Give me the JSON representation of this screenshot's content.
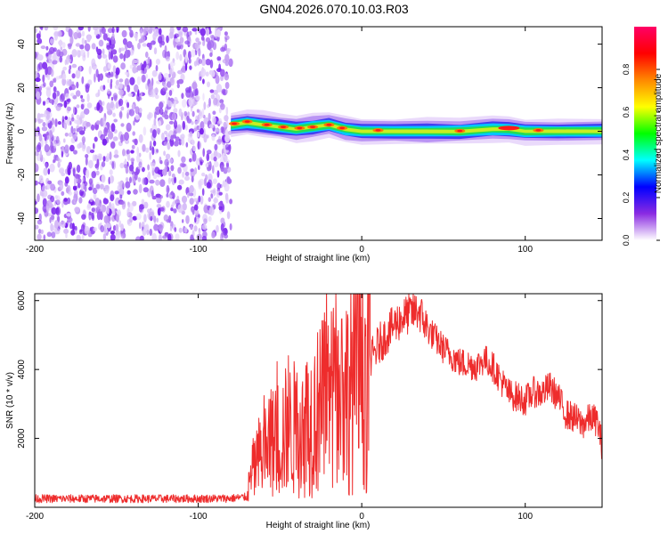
{
  "title": "GN04.2026.070.10.03.R03",
  "chart_data": [
    {
      "type": "heatmap",
      "name": "spectrogram",
      "xlabel": "Height of straight line (km)",
      "ylabel": "Frequency (Hz)",
      "xlim": [
        -200,
        147
      ],
      "ylim": [
        -50,
        48
      ],
      "xticks": [
        "-200",
        "-100",
        "0",
        "100"
      ],
      "xtick_values": [
        -200,
        -100,
        0,
        100
      ],
      "yticks": [
        "-40",
        "-20",
        "0",
        "20",
        "40"
      ],
      "ytick_values": [
        -40,
        -20,
        0,
        20,
        40
      ],
      "noise_region_km": [
        -200,
        -80
      ],
      "signal_region_km": [
        -80,
        147
      ],
      "signal_center_hz": [
        {
          "x": -80,
          "y": 3
        },
        {
          "x": -70,
          "y": 4
        },
        {
          "x": -60,
          "y": 3
        },
        {
          "x": -50,
          "y": 2
        },
        {
          "x": -40,
          "y": 1
        },
        {
          "x": -30,
          "y": 2
        },
        {
          "x": -20,
          "y": 3
        },
        {
          "x": -10,
          "y": 1
        },
        {
          "x": 0,
          "y": 0
        },
        {
          "x": 20,
          "y": 0
        },
        {
          "x": 40,
          "y": 0
        },
        {
          "x": 60,
          "y": 0
        },
        {
          "x": 80,
          "y": 1
        },
        {
          "x": 90,
          "y": 1
        },
        {
          "x": 100,
          "y": 0
        },
        {
          "x": 120,
          "y": 0
        },
        {
          "x": 147,
          "y": 0
        }
      ],
      "colorbar": {
        "label": "Normalized spectral amplitude",
        "range": [
          0,
          1
        ],
        "ticks": [
          "0.0",
          "0.2",
          "0.4",
          "0.6",
          "0.8"
        ],
        "tick_values": [
          0,
          0.2,
          0.4,
          0.6,
          0.8
        ],
        "colors": [
          "#ffffff",
          "#8a2be2",
          "#0000ff",
          "#00ffff",
          "#00ff00",
          "#ffff00",
          "#ff8800",
          "#ff0000",
          "#ff0066"
        ]
      }
    },
    {
      "type": "line",
      "name": "snr",
      "xlabel": "Height of straight line (km)",
      "ylabel": "SNR (10 * v/v)",
      "xlim": [
        -200,
        147
      ],
      "ylim": [
        0,
        6200
      ],
      "xticks": [
        "-200",
        "-100",
        "0",
        "100"
      ],
      "xtick_values": [
        -200,
        -100,
        0,
        100
      ],
      "yticks": [
        "2000",
        "4000",
        "6000"
      ],
      "ytick_values": [
        2000,
        4000,
        6000
      ],
      "color": "#ee2c2c",
      "series": [
        {
          "name": "SNR",
          "points": [
            {
              "x": -200,
              "y": 250
            },
            {
              "x": -180,
              "y": 250
            },
            {
              "x": -160,
              "y": 250
            },
            {
              "x": -140,
              "y": 250
            },
            {
              "x": -120,
              "y": 250
            },
            {
              "x": -100,
              "y": 250
            },
            {
              "x": -80,
              "y": 260
            },
            {
              "x": -70,
              "y": 300
            },
            {
              "x": -67,
              "y": 1000
            },
            {
              "x": -62,
              "y": 1500
            },
            {
              "x": -55,
              "y": 1800
            },
            {
              "x": -50,
              "y": 2100
            },
            {
              "x": -45,
              "y": 2200
            },
            {
              "x": -40,
              "y": 2300
            },
            {
              "x": -35,
              "y": 2400
            },
            {
              "x": -30,
              "y": 2600
            },
            {
              "x": -25,
              "y": 2900
            },
            {
              "x": -20,
              "y": 3100
            },
            {
              "x": -15,
              "y": 3200
            },
            {
              "x": -10,
              "y": 3400
            },
            {
              "x": -5,
              "y": 3600
            },
            {
              "x": 0,
              "y": 3900
            },
            {
              "x": 5,
              "y": 4200
            },
            {
              "x": 10,
              "y": 4700
            },
            {
              "x": 15,
              "y": 5000
            },
            {
              "x": 20,
              "y": 5300
            },
            {
              "x": 25,
              "y": 5500
            },
            {
              "x": 30,
              "y": 5650
            },
            {
              "x": 35,
              "y": 5700
            },
            {
              "x": 40,
              "y": 5200
            },
            {
              "x": 45,
              "y": 4900
            },
            {
              "x": 50,
              "y": 4600
            },
            {
              "x": 55,
              "y": 4400
            },
            {
              "x": 60,
              "y": 4200
            },
            {
              "x": 65,
              "y": 4150
            },
            {
              "x": 70,
              "y": 4100
            },
            {
              "x": 75,
              "y": 4300
            },
            {
              "x": 80,
              "y": 4100
            },
            {
              "x": 85,
              "y": 3700
            },
            {
              "x": 90,
              "y": 3300
            },
            {
              "x": 95,
              "y": 3200
            },
            {
              "x": 100,
              "y": 3100
            },
            {
              "x": 105,
              "y": 3350
            },
            {
              "x": 110,
              "y": 3300
            },
            {
              "x": 115,
              "y": 3500
            },
            {
              "x": 120,
              "y": 3200
            },
            {
              "x": 125,
              "y": 2700
            },
            {
              "x": 130,
              "y": 2600
            },
            {
              "x": 135,
              "y": 2400
            },
            {
              "x": 140,
              "y": 2600
            },
            {
              "x": 144,
              "y": 2500
            },
            {
              "x": 147,
              "y": 1800
            }
          ]
        }
      ]
    }
  ]
}
